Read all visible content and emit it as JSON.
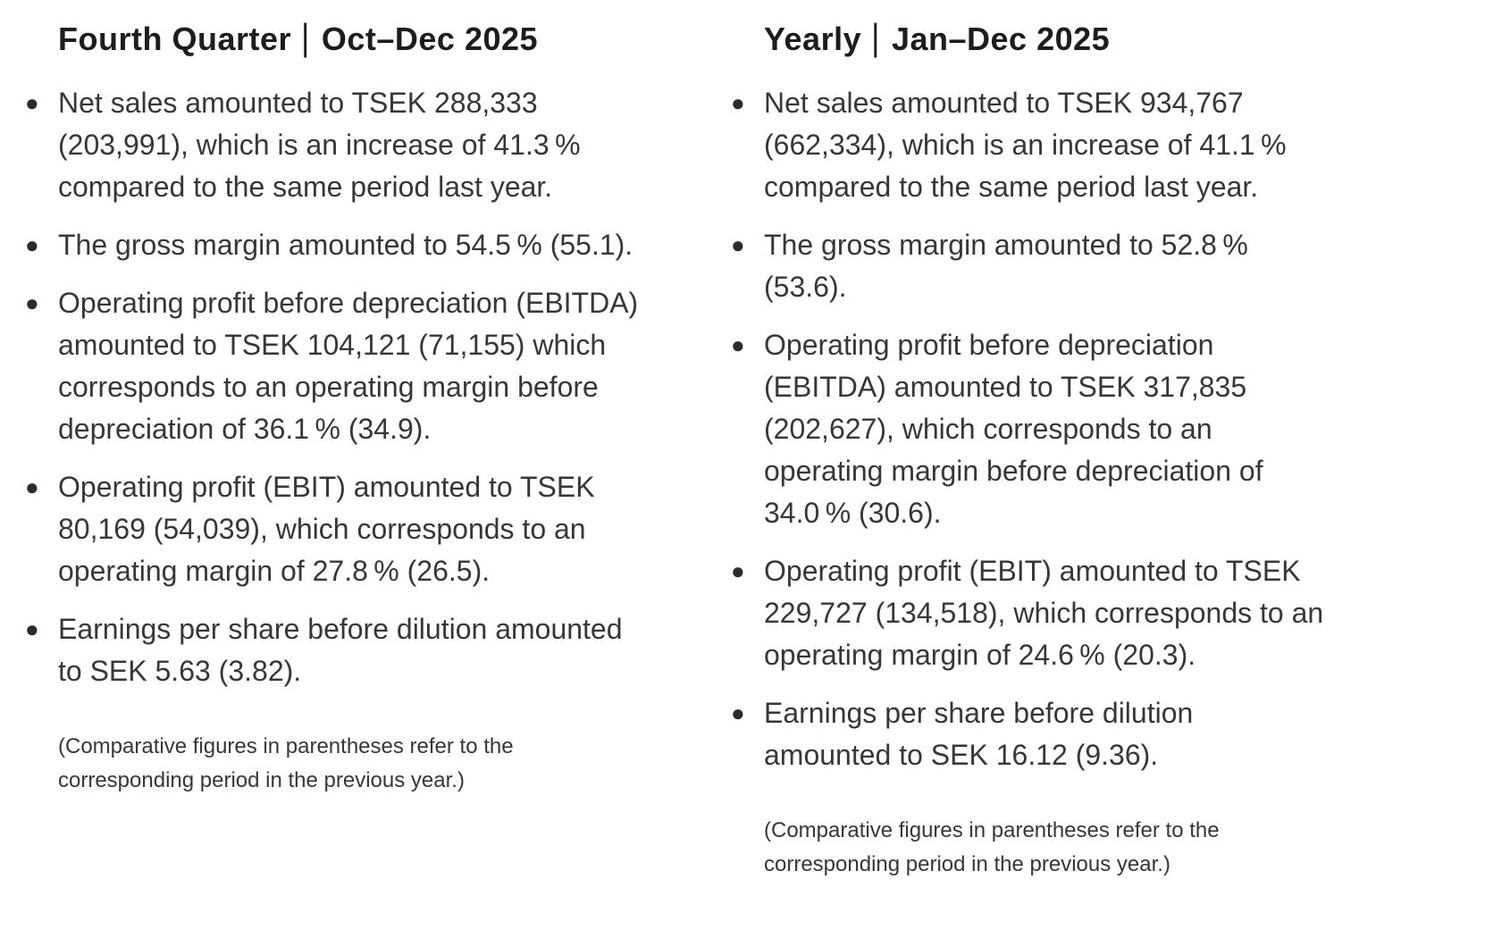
{
  "page": {
    "background": "#ffffff",
    "body_text_color": "#373737",
    "heading_text_color": "#1d1d1d"
  },
  "columns": [
    {
      "heading": {
        "title": "Fourth Quarter",
        "separator": "|",
        "period": "Oct–Dec 2025"
      },
      "bullets": [
        "Net sales amounted to TSEK 288,333 (203,991), which is an increase of 41.3 % compared to the same period last year.",
        "The gross margin amounted to 54.5 % (55.1).",
        "Operating profit before depreciation (EBITDA) amounted to TSEK 104,121 (71,155) which corresponds to an operating margin before depreciation of 36.1 % (34.9).",
        "Operating profit (EBIT) amounted to TSEK 80,169 (54,039), which corresponds to an operating margin of 27.8 % (26.5).",
        "Earnings per share before dilution amounted to SEK 5.63 (3.82)."
      ],
      "footnote": "(Comparative figures in parentheses refer to the corresponding period in the previous year.)"
    },
    {
      "heading": {
        "title": "Yearly",
        "separator": "|",
        "period": "Jan–Dec 2025"
      },
      "bullets": [
        "Net sales amounted to TSEK 934,767 (662,334), which is an increase of 41.1 % compared to the same period last year.",
        "The gross margin amounted to 52.8 % (53.6).",
        "Operating profit before depreciation (EBITDA) amounted to TSEK 317,835 (202,627), which corresponds to an operating margin before depreciation of 34.0 % (30.6).",
        "Operating profit (EBIT) amounted to TSEK 229,727 (134,518), which corresponds to an operating margin of 24.6 % (20.3).",
        "Earnings per share before dilution amounted to SEK 16.12 (9.36)."
      ],
      "footnote": "(Comparative figures in parentheses refer to the corresponding period in the previous year.)"
    }
  ]
}
